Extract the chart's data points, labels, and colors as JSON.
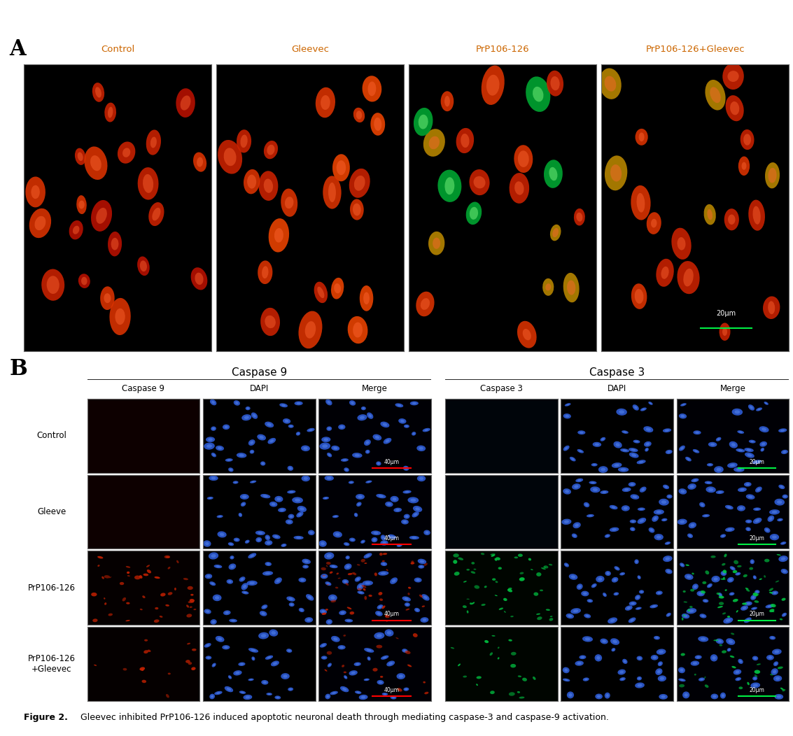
{
  "fig_width": 11.33,
  "fig_height": 10.52,
  "panel_A_label": "A",
  "panel_B_label": "B",
  "panel_A_col_labels": [
    "Control",
    "Gleevec",
    "PrP106-126",
    "PrP106-126+Gleevec"
  ],
  "panel_B_group1_title": "Caspase 9",
  "panel_B_group2_title": "Caspase 3",
  "panel_B_col_labels_1": [
    "Caspase 9",
    "DAPI",
    "Merge"
  ],
  "panel_B_col_labels_2": [
    "Caspase 3",
    "DAPI",
    "Merge"
  ],
  "panel_B_row_labels": [
    "Control",
    "Gleeve",
    "PrP106-126",
    "PrP106-126\n+Gleevec"
  ],
  "scalebar_A_text": "20μm",
  "scalebar_B1_text": "40μm",
  "scalebar_B2_text": "20μm",
  "caption_bold": "Figure 2.",
  "caption_normal": " Gleevec inhibited PrP106-126 induced apoptotic neuronal death through mediating caspase-3 and caspase-9 activation.",
  "A_label_color": "#cc6600",
  "B_label_color": "#000080",
  "col_label_color_A": "#cc6600",
  "col_label_color_B": "#000000"
}
